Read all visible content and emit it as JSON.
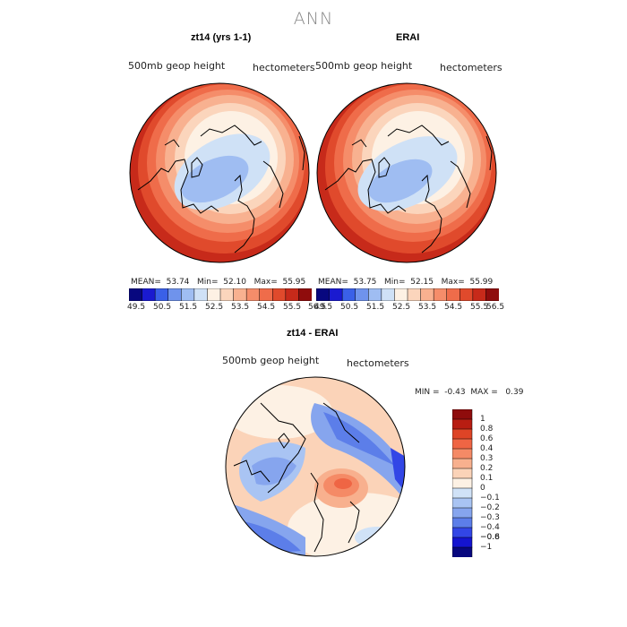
{
  "title": "ANN",
  "colors": {
    "seq": [
      "#08087f",
      "#1a1ad0",
      "#3a60e8",
      "#6f93ec",
      "#9fbdf2",
      "#cfe1f6",
      "#fdf1e4",
      "#fbd5bc",
      "#f8b190",
      "#f58d6a",
      "#ef6c4a",
      "#e04a2c",
      "#c72a1a",
      "#8f0c0c"
    ],
    "diff": [
      "#08087f",
      "#1414d0",
      "#3246e6",
      "#5c7ee9",
      "#86a5ee",
      "#a9c4f3",
      "#d0e2f7",
      "#fdf1e4",
      "#fbd3b8",
      "#f8b08e",
      "#f58a66",
      "#ef6544",
      "#de4426",
      "#b81d12",
      "#8f0c0c"
    ]
  },
  "panels": [
    {
      "title": "zt14 (yrs 1-1)",
      "var_label": "500mb geop height",
      "units": "hectometers",
      "mean_label": "MEAN=",
      "mean": "53.74",
      "min_label": "Min=",
      "min": "52.10",
      "max_label": "Max=",
      "max": "55.95"
    },
    {
      "title": "ERAI",
      "var_label": "500mb geop height",
      "units": "hectometers",
      "mean_label": "MEAN=",
      "mean": "53.75",
      "min_label": "Min=",
      "min": "52.15",
      "max_label": "Max=",
      "max": "55.99"
    }
  ],
  "colorbar_ticks": [
    "49.5",
    "50.5",
    "51.5",
    "52.5",
    "53.5",
    "54.5",
    "55.5",
    "56.5"
  ],
  "diff": {
    "title": "zt14 - ERAI",
    "var_label": "500mb geop height",
    "units": "hectometers",
    "min_label": "MIN =",
    "min": "-0.43",
    "max_label": "MAX =",
    "max": "0.39",
    "levels": [
      "1",
      "0.8",
      "0.6",
      "0.4",
      "0.3",
      "0.2",
      "0.1",
      "0",
      "−0.1",
      "−0.2",
      "−0.3",
      "−0.4",
      "−0.6",
      "−0.8",
      "−1"
    ]
  }
}
